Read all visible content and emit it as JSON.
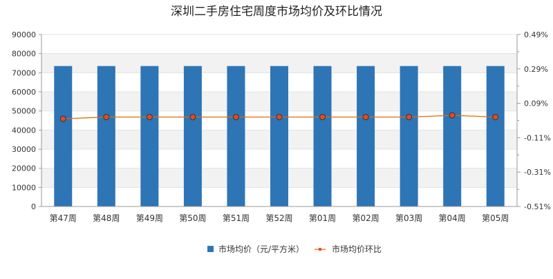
{
  "chart_data": {
    "type": "bar",
    "title": "深圳二手房住宅周度市场均价及环比情况",
    "categories": [
      "第47周",
      "第48周",
      "第49周",
      "第50周",
      "第51周",
      "第52周",
      "第01周",
      "第02周",
      "第03周",
      "第04周",
      "第05周"
    ],
    "y_left_ticks": [
      "0",
      "10000",
      "20000",
      "30000",
      "40000",
      "50000",
      "60000",
      "70000",
      "80000",
      "90000"
    ],
    "y_right_ticks": [
      "-0.51%",
      "-0.31%",
      "-0.11%",
      "0.09%",
      "0.29%",
      "0.49%"
    ],
    "y_left_range": [
      0,
      90000
    ],
    "y_right_range": [
      -0.51,
      0.49
    ],
    "grid": "horizontal",
    "legend_position": "bottom",
    "series": [
      {
        "name": "市场均价（元/平方米）",
        "type": "bar",
        "axis": "left",
        "color": "#2e75b6",
        "values": [
          73500,
          73500,
          73500,
          73500,
          73500,
          73500,
          73500,
          73500,
          73500,
          73500,
          73500
        ]
      },
      {
        "name": "市场均价环比",
        "type": "line",
        "axis": "right",
        "color": "#e36c09",
        "marker_color": "#e34a1f",
        "values": [
          0.0,
          0.01,
          0.01,
          0.01,
          0.01,
          0.01,
          0.01,
          0.01,
          0.01,
          0.02,
          0.01
        ]
      }
    ]
  }
}
